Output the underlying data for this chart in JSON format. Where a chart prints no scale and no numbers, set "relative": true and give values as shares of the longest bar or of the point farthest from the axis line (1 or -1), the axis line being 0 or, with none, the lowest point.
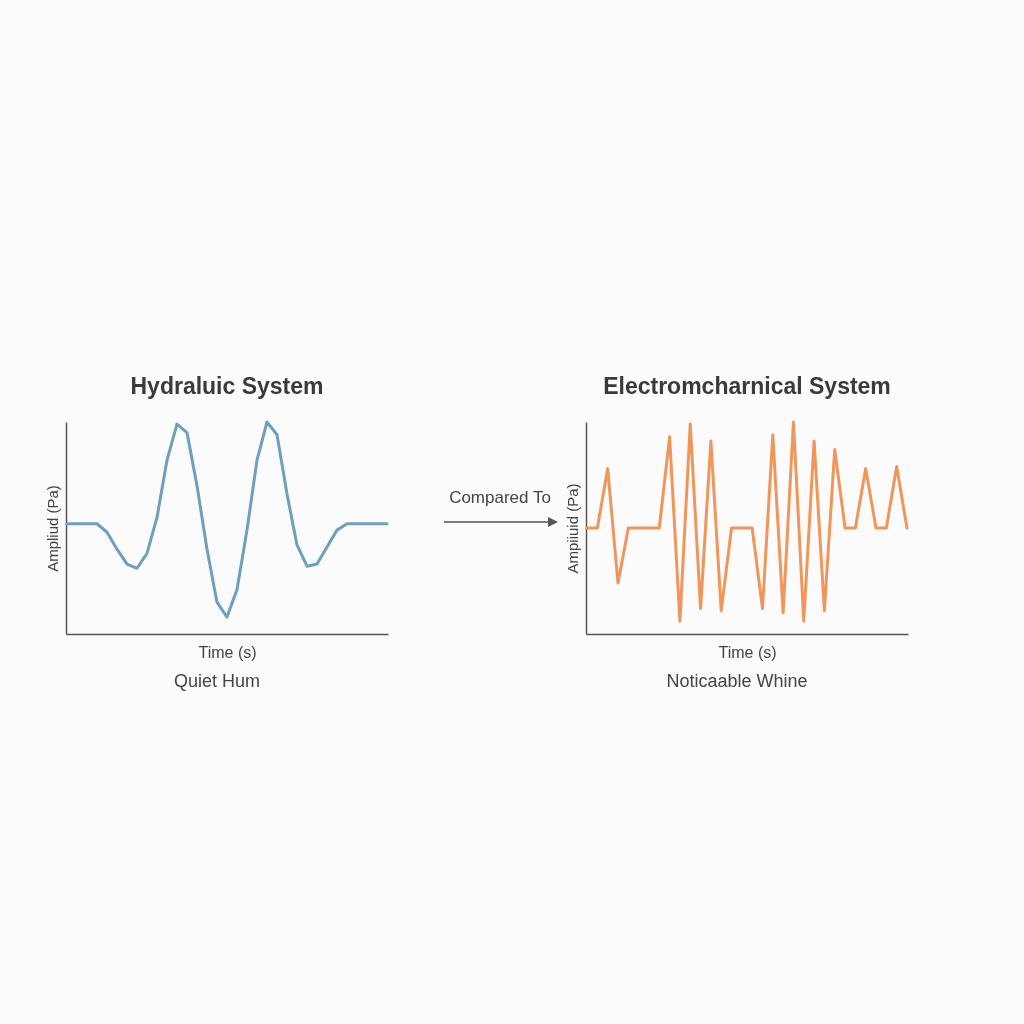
{
  "chart_data": [
    {
      "type": "line",
      "title": "Hydraluic System",
      "xlabel": "Time (s)",
      "ylabel": "Ampliud (Pa)",
      "relative": true,
      "tick_labels": false,
      "grid": false,
      "categories": [
        null,
        null,
        null,
        null,
        null,
        null,
        null,
        null,
        null,
        null,
        null,
        null,
        null,
        null,
        null,
        null,
        null,
        null,
        null,
        null,
        null,
        null,
        null,
        null,
        null,
        null,
        null,
        null,
        null,
        null,
        null,
        null,
        null
      ],
      "series": [
        {
          "color": "#6f9fbf",
          "values": [
            0.52,
            0.52,
            0.52,
            0.52,
            0.48,
            0.4,
            0.33,
            0.31,
            0.38,
            0.55,
            0.82,
            0.99,
            0.95,
            0.7,
            0.4,
            0.15,
            0.08,
            0.21,
            0.49,
            0.82,
            1.0,
            0.94,
            0.66,
            0.42,
            0.32,
            0.33,
            0.41,
            0.49,
            0.52,
            0.52,
            0.52,
            0.52,
            0.52
          ]
        }
      ],
      "annotations": [
        "Quiet Hum",
        "Compared To"
      ]
    },
    {
      "type": "line",
      "title": "Electromcharnical System",
      "xlabel": "Time (s)",
      "ylabel": "Ampiiuid (Pa)",
      "relative": true,
      "tick_labels": false,
      "grid": false,
      "categories": [
        null,
        null,
        null,
        null,
        null,
        null,
        null,
        null,
        null,
        null,
        null,
        null,
        null,
        null,
        null,
        null,
        null,
        null,
        null,
        null,
        null,
        null,
        null,
        null,
        null,
        null,
        null,
        null,
        null,
        null,
        null,
        null
      ],
      "series": [
        {
          "color": "#f0965a",
          "values": [
            0.5,
            0.5,
            0.78,
            0.24,
            0.5,
            0.5,
            0.5,
            0.5,
            0.93,
            0.06,
            0.99,
            0.12,
            0.91,
            0.11,
            0.5,
            0.5,
            0.5,
            0.12,
            0.94,
            0.1,
            1.0,
            0.06,
            0.91,
            0.11,
            0.87,
            0.5,
            0.5,
            0.78,
            0.5,
            0.5,
            0.79,
            0.5
          ]
        }
      ],
      "annotations": [
        "Noticaable Whine"
      ]
    }
  ]
}
